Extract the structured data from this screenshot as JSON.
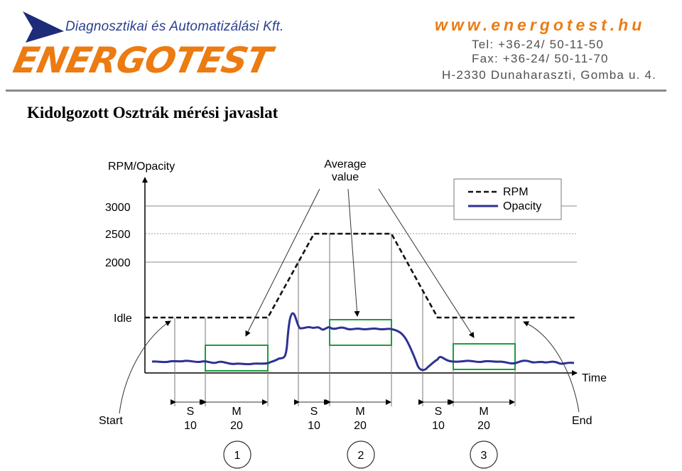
{
  "header": {
    "company_tagline": "Diagnosztikai és Automatizálási Kft.",
    "logo_text": "ENERGOTEST",
    "website": "www.energotest.hu",
    "tel": "Tel:  +36-24/ 50-11-50",
    "fax": "Fax: +36-24/ 50-11-70",
    "address": "H-2330 Dunaharaszti, Gomba u. 4.",
    "colors": {
      "logo_orange": "#ec7b12",
      "logo_blue": "#2a3f8f"
    }
  },
  "page_title": "Kidolgozott Osztrák mérési javaslat",
  "diagram": {
    "y_axis_label": "RPM/Opacity",
    "x_axis_label": "Time",
    "y_ticks": [
      "3000",
      "2500",
      "2000",
      "Idle"
    ],
    "annotation_average": [
      "Average",
      "value"
    ],
    "legend": {
      "rpm": "RPM",
      "opacity": "Opacity"
    },
    "start_label": "Start",
    "end_label": "End",
    "phases": [
      {
        "top": "S",
        "bottom": "10"
      },
      {
        "top": "M",
        "bottom": "20"
      },
      {
        "top": "S",
        "bottom": "10"
      },
      {
        "top": "M",
        "bottom": "20"
      },
      {
        "top": "S",
        "bottom": "10"
      },
      {
        "top": "M",
        "bottom": "20"
      }
    ],
    "steps": [
      "1",
      "2",
      "3"
    ],
    "colors": {
      "opacity_line": "#2e3192",
      "window_box": "#1a9e3c"
    }
  }
}
